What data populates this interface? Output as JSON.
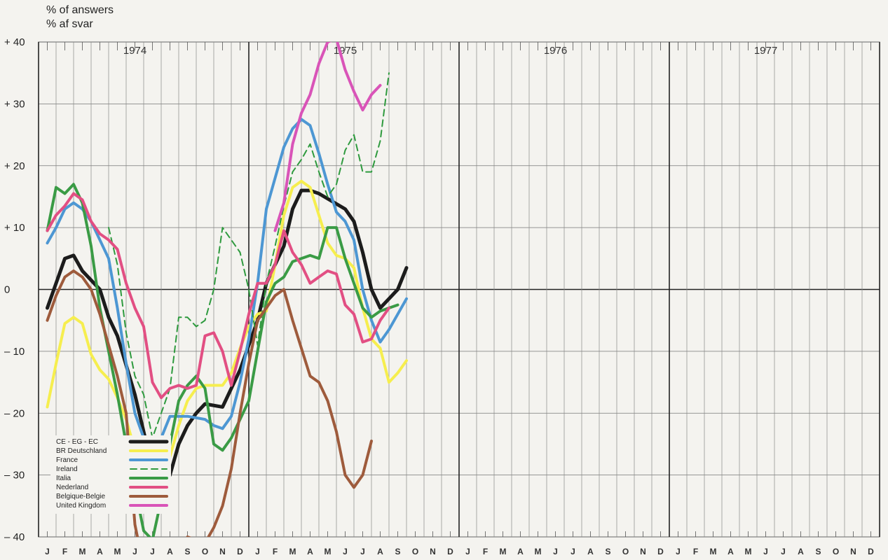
{
  "header": {
    "ylabel_line1": "% of answers",
    "ylabel_line2": "% af svar"
  },
  "chart_data": {
    "type": "line",
    "ylabel": "% of answers / % af svar",
    "ylim": [
      -40,
      40
    ],
    "yticks": [
      "+ 40",
      "+ 30",
      "+ 20",
      "+ 10",
      "0",
      "– 10",
      "– 20",
      "– 30",
      "– 40"
    ],
    "ytick_values": [
      40,
      30,
      20,
      10,
      0,
      -10,
      -20,
      -30,
      -40
    ],
    "x_months": [
      "J",
      "F",
      "M",
      "A",
      "M",
      "J",
      "J",
      "A",
      "S",
      "O",
      "N",
      "D",
      "J",
      "F",
      "M",
      "A",
      "M",
      "J",
      "J",
      "A",
      "S",
      "O",
      "N",
      "D",
      "J",
      "F",
      "M",
      "A",
      "M",
      "J",
      "J",
      "A",
      "S",
      "O",
      "N",
      "D",
      "J",
      "F",
      "M",
      "A",
      "M",
      "J",
      "J",
      "A",
      "S",
      "O",
      "N",
      "D"
    ],
    "years": [
      {
        "label": "1974",
        "month_index": 5
      },
      {
        "label": "1975",
        "month_index": 17
      },
      {
        "label": "1976",
        "month_index": 29
      },
      {
        "label": "1977",
        "month_index": 41
      }
    ],
    "grid": true,
    "legend_position": "bottom-left",
    "series": [
      {
        "name": "CE - EG - EC",
        "color": "#1c1c1c",
        "width": 5,
        "dash": "",
        "points": [
          [
            0,
            -3
          ],
          [
            0.5,
            1
          ],
          [
            1,
            5
          ],
          [
            1.5,
            5.5
          ],
          [
            2,
            3
          ],
          [
            3,
            0
          ],
          [
            3.5,
            -4.5
          ],
          [
            4,
            -7.5
          ],
          [
            5,
            -17
          ],
          [
            6,
            -29
          ],
          [
            6.5,
            -32.5
          ],
          [
            7,
            -30
          ],
          [
            7.5,
            -25
          ],
          [
            8,
            -22
          ],
          [
            8.5,
            -20
          ],
          [
            9,
            -18.5
          ],
          [
            10,
            -19
          ],
          [
            10.5,
            -16
          ],
          [
            11,
            -13
          ],
          [
            12,
            -5
          ],
          [
            12.5,
            1
          ],
          [
            13.5,
            7
          ],
          [
            14,
            13
          ],
          [
            14.5,
            16
          ],
          [
            15,
            16
          ],
          [
            15.5,
            15.5
          ],
          [
            17,
            13
          ],
          [
            17.5,
            11
          ],
          [
            18,
            6
          ],
          [
            18.5,
            0
          ],
          [
            19,
            -3
          ],
          [
            19.5,
            -1.5
          ],
          [
            20,
            0
          ],
          [
            20.5,
            3.5
          ]
        ]
      },
      {
        "name": "BR Deutschland",
        "color": "#f6ee4e",
        "width": 4,
        "dash": "",
        "points": [
          [
            0,
            -19
          ],
          [
            0.5,
            -12
          ],
          [
            1,
            -5.5
          ],
          [
            1.5,
            -4.5
          ],
          [
            2,
            -5.5
          ],
          [
            2.5,
            -10.5
          ],
          [
            3,
            -13
          ],
          [
            3.5,
            -14.5
          ],
          [
            4,
            -17.5
          ],
          [
            4.5,
            -21
          ],
          [
            5,
            -26
          ],
          [
            5.5,
            -32
          ],
          [
            6,
            -34
          ],
          [
            6.5,
            -31
          ],
          [
            7,
            -27
          ],
          [
            7.5,
            -22
          ],
          [
            8,
            -18
          ],
          [
            8.5,
            -16
          ],
          [
            9,
            -15.5
          ],
          [
            10,
            -15.5
          ],
          [
            10.5,
            -13.5
          ],
          [
            11,
            -9.5
          ],
          [
            11.5,
            -6
          ],
          [
            12,
            -4
          ],
          [
            12.5,
            -3.5
          ],
          [
            13,
            4
          ],
          [
            13.5,
            12
          ],
          [
            14,
            16.5
          ],
          [
            14.5,
            17.5
          ],
          [
            15,
            16.5
          ],
          [
            15.5,
            12
          ],
          [
            16,
            7.5
          ],
          [
            16.5,
            5.5
          ],
          [
            17,
            5
          ],
          [
            17.5,
            3.5
          ],
          [
            18,
            -3
          ],
          [
            18.5,
            -8
          ],
          [
            19,
            -9.5
          ],
          [
            19.5,
            -15
          ],
          [
            20,
            -13.5
          ],
          [
            20.5,
            -11.5
          ]
        ]
      },
      {
        "name": "France",
        "color": "#4d97d3",
        "width": 4,
        "dash": "",
        "points": [
          [
            0,
            7.5
          ],
          [
            0.5,
            10
          ],
          [
            1,
            13
          ],
          [
            1.5,
            14
          ],
          [
            2,
            13
          ],
          [
            2.5,
            11
          ],
          [
            3,
            8
          ],
          [
            3.5,
            5
          ],
          [
            4,
            -3
          ],
          [
            4.5,
            -12
          ],
          [
            5,
            -20
          ],
          [
            5.5,
            -24
          ],
          [
            6,
            -26
          ],
          [
            6.5,
            -24
          ],
          [
            7,
            -20.5
          ],
          [
            8,
            -20.5
          ],
          [
            9,
            -21
          ],
          [
            9.5,
            -22
          ],
          [
            10,
            -22.5
          ],
          [
            10.5,
            -20.5
          ],
          [
            11,
            -15
          ],
          [
            11.5,
            -8
          ],
          [
            12,
            1
          ],
          [
            12.5,
            13
          ],
          [
            13,
            18
          ],
          [
            13.5,
            23
          ],
          [
            14,
            26
          ],
          [
            14.5,
            27.5
          ],
          [
            15,
            26.5
          ],
          [
            15.5,
            22
          ],
          [
            16,
            17
          ],
          [
            16.5,
            12.5
          ],
          [
            17,
            11
          ],
          [
            17.5,
            8
          ],
          [
            18,
            0
          ],
          [
            18.5,
            -5
          ],
          [
            19,
            -8.5
          ],
          [
            19.5,
            -6.5
          ],
          [
            20,
            -4
          ],
          [
            20.5,
            -1.5
          ]
        ]
      },
      {
        "name": "Ireland",
        "color": "#2e9a3e",
        "width": 2,
        "dash": "9 6",
        "points": [
          [
            3.5,
            10
          ],
          [
            4,
            4
          ],
          [
            4.5,
            -7
          ],
          [
            5,
            -14
          ],
          [
            5.5,
            -17
          ],
          [
            6,
            -24
          ],
          [
            6.5,
            -20
          ],
          [
            7,
            -16
          ],
          [
            7.5,
            -4.5
          ],
          [
            8,
            -4.5
          ],
          [
            8.5,
            -6
          ],
          [
            9,
            -5
          ],
          [
            9.5,
            0
          ],
          [
            10,
            10
          ],
          [
            10.5,
            8
          ],
          [
            11,
            6
          ],
          [
            11.5,
            0
          ],
          [
            12,
            -9
          ],
          [
            12.5,
            1
          ],
          [
            13,
            7
          ],
          [
            13.5,
            13.5
          ],
          [
            14,
            19
          ],
          [
            14.5,
            21
          ],
          [
            15,
            23.5
          ],
          [
            15.5,
            19
          ],
          [
            16,
            15
          ],
          [
            16.5,
            17
          ],
          [
            17,
            22.5
          ],
          [
            17.5,
            25
          ],
          [
            18,
            19
          ],
          [
            18.5,
            19
          ],
          [
            19,
            24
          ],
          [
            19.5,
            35
          ]
        ]
      },
      {
        "name": "Italia",
        "color": "#3a9b45",
        "width": 4,
        "dash": "",
        "points": [
          [
            0,
            9.5
          ],
          [
            0.5,
            16.5
          ],
          [
            1,
            15.5
          ],
          [
            1.5,
            17
          ],
          [
            2,
            14
          ],
          [
            2.5,
            7
          ],
          [
            3,
            -3
          ],
          [
            3.5,
            -10
          ],
          [
            4,
            -17
          ],
          [
            4.5,
            -25
          ],
          [
            5,
            -32
          ],
          [
            5.5,
            -39
          ],
          [
            6,
            -40.5
          ],
          [
            6.5,
            -34
          ],
          [
            7,
            -25
          ],
          [
            7.5,
            -18
          ],
          [
            8,
            -15.5
          ],
          [
            8.5,
            -14
          ],
          [
            9,
            -16
          ],
          [
            9.5,
            -25
          ],
          [
            10,
            -26
          ],
          [
            10.5,
            -24
          ],
          [
            11,
            -21
          ],
          [
            11.5,
            -18
          ],
          [
            12,
            -10
          ],
          [
            12.5,
            -2
          ],
          [
            13,
            1
          ],
          [
            13.5,
            2
          ],
          [
            14,
            4.5
          ],
          [
            14.5,
            5
          ],
          [
            15,
            5.5
          ],
          [
            15.5,
            5
          ],
          [
            16,
            10
          ],
          [
            16.5,
            10
          ],
          [
            17,
            5
          ],
          [
            17.5,
            1
          ],
          [
            18,
            -3
          ],
          [
            18.5,
            -4.5
          ],
          [
            19,
            -3.5
          ],
          [
            19.5,
            -3
          ],
          [
            20,
            -2.5
          ]
        ]
      },
      {
        "name": "Nederland",
        "color": "#e24f83",
        "width": 4,
        "dash": "",
        "points": [
          [
            0,
            9.5
          ],
          [
            0.5,
            12
          ],
          [
            1,
            13.5
          ],
          [
            1.5,
            15.5
          ],
          [
            2,
            14.5
          ],
          [
            2.5,
            11
          ],
          [
            3,
            9
          ],
          [
            3.5,
            8
          ],
          [
            4,
            6.5
          ],
          [
            4.5,
            1
          ],
          [
            5,
            -3
          ],
          [
            5.5,
            -6
          ],
          [
            6,
            -15
          ],
          [
            6.5,
            -17.5
          ],
          [
            7,
            -16
          ],
          [
            7.5,
            -15.5
          ],
          [
            8,
            -16
          ],
          [
            8.5,
            -15.5
          ],
          [
            9,
            -7.5
          ],
          [
            9.5,
            -7
          ],
          [
            10,
            -10
          ],
          [
            10.5,
            -15.5
          ],
          [
            11,
            -10
          ],
          [
            11.5,
            -4
          ],
          [
            12,
            1
          ],
          [
            12.5,
            1
          ],
          [
            13,
            4
          ],
          [
            13.5,
            9.5
          ],
          [
            14,
            6
          ],
          [
            14.5,
            4
          ],
          [
            15,
            1
          ],
          [
            15.5,
            2
          ],
          [
            16,
            3
          ],
          [
            16.5,
            2.5
          ],
          [
            17,
            -2.5
          ],
          [
            17.5,
            -4
          ],
          [
            18,
            -8.5
          ],
          [
            18.5,
            -8
          ],
          [
            19,
            -5
          ],
          [
            19.5,
            -3
          ]
        ]
      },
      {
        "name": "Belgique-Belgie",
        "color": "#9e5b3c",
        "width": 4,
        "dash": "",
        "points": [
          [
            0,
            -5
          ],
          [
            0.5,
            -1
          ],
          [
            1,
            2
          ],
          [
            1.5,
            3
          ],
          [
            2,
            2
          ],
          [
            2.5,
            0
          ],
          [
            3,
            -4
          ],
          [
            3.5,
            -9
          ],
          [
            4,
            -14
          ],
          [
            4.5,
            -20
          ],
          [
            5,
            -38
          ],
          [
            5.5,
            -45
          ],
          [
            7,
            -45
          ],
          [
            7.5,
            -44
          ],
          [
            8,
            -40
          ],
          [
            8.5,
            -40.5
          ],
          [
            9,
            -41
          ],
          [
            9.5,
            -38.5
          ],
          [
            10,
            -35
          ],
          [
            10.5,
            -29
          ],
          [
            11,
            -20
          ],
          [
            11.5,
            -12
          ],
          [
            12,
            -5
          ],
          [
            12.5,
            -3
          ],
          [
            13,
            -1
          ],
          [
            13.5,
            0
          ],
          [
            14,
            -5
          ],
          [
            14.5,
            -9.5
          ],
          [
            15,
            -14
          ],
          [
            15.5,
            -15
          ],
          [
            16,
            -18
          ],
          [
            16.5,
            -23
          ],
          [
            17,
            -30
          ],
          [
            17.5,
            -32
          ],
          [
            18,
            -30
          ],
          [
            18.5,
            -24.5
          ]
        ]
      },
      {
        "name": "United Kingdom",
        "color": "#d954b8",
        "width": 4,
        "dash": "",
        "points": [
          [
            13,
            9.5
          ],
          [
            13.5,
            14
          ],
          [
            14,
            23.5
          ],
          [
            14.5,
            28.5
          ],
          [
            15,
            31.5
          ],
          [
            15.5,
            36.5
          ],
          [
            16,
            40
          ],
          [
            16.5,
            40.5
          ],
          [
            17,
            35.5
          ],
          [
            17.5,
            32
          ],
          [
            18,
            29
          ],
          [
            18.5,
            31.5
          ],
          [
            19,
            33
          ]
        ]
      }
    ]
  }
}
